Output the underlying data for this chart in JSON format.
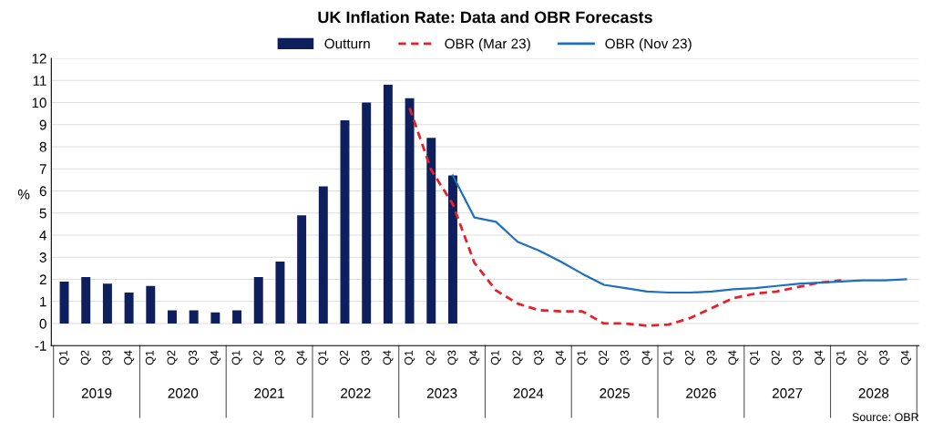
{
  "chart_data": {
    "type": "bar",
    "title": "UK Inflation Rate: Data and OBR Forecasts",
    "ylabel": "%",
    "categories": [
      "Q1",
      "Q2",
      "Q3",
      "Q4",
      "Q1",
      "Q2",
      "Q3",
      "Q4",
      "Q1",
      "Q2",
      "Q3",
      "Q4",
      "Q1",
      "Q2",
      "Q3",
      "Q4",
      "Q1",
      "Q2",
      "Q3",
      "Q4",
      "Q1",
      "Q2",
      "Q3",
      "Q4",
      "Q1",
      "Q2",
      "Q3",
      "Q4",
      "Q1",
      "Q2",
      "Q3",
      "Q4",
      "Q1",
      "Q2",
      "Q3",
      "Q4",
      "Q1",
      "Q2",
      "Q3",
      "Q4"
    ],
    "series": [
      {
        "name": "Outturn",
        "color": "#0d1f5c",
        "values": [
          1.9,
          2.1,
          1.8,
          1.4,
          1.7,
          0.6,
          0.6,
          0.5,
          0.6,
          2.1,
          2.8,
          4.9,
          6.2,
          9.2,
          10.0,
          10.8,
          10.2,
          8.4,
          6.7,
          null,
          null,
          null,
          null,
          null,
          null,
          null,
          null,
          null,
          null,
          null,
          null,
          null,
          null,
          null,
          null,
          null,
          null,
          null,
          null,
          null
        ]
      },
      {
        "name": "OBR (Mar 23)",
        "type": "line",
        "line_style": "dashed",
        "color": "#e8202a",
        "values": [
          null,
          null,
          null,
          null,
          null,
          null,
          null,
          null,
          null,
          null,
          null,
          null,
          null,
          null,
          null,
          null,
          9.75,
          6.95,
          5.4,
          2.75,
          1.5,
          0.9,
          0.6,
          0.55,
          0.55,
          0.0,
          0.0,
          -0.1,
          -0.05,
          0.25,
          0.7,
          1.15,
          1.35,
          1.45,
          1.65,
          1.85,
          1.95,
          null,
          null,
          null
        ]
      },
      {
        "name": "OBR (Nov 23)",
        "type": "line",
        "line_style": "solid",
        "color": "#1f6fc0",
        "values": [
          null,
          null,
          null,
          null,
          null,
          null,
          null,
          null,
          null,
          null,
          null,
          null,
          null,
          null,
          null,
          null,
          null,
          null,
          6.7,
          4.8,
          4.6,
          3.7,
          3.3,
          2.8,
          2.25,
          1.75,
          1.6,
          1.45,
          1.4,
          1.4,
          1.45,
          1.55,
          1.6,
          1.7,
          1.8,
          1.85,
          1.9,
          1.95,
          1.95,
          2.0
        ]
      }
    ],
    "ylim": [
      -1,
      12
    ],
    "yticks": [
      -1,
      0,
      1,
      2,
      3,
      4,
      5,
      6,
      7,
      8,
      9,
      10,
      11,
      12
    ],
    "grid": "y",
    "legend": "top",
    "annotations": [
      "2019",
      "2020",
      "2021",
      "2022",
      "2023",
      "2024",
      "2025",
      "2026",
      "2027",
      "2028",
      "Source: OBR"
    ]
  }
}
